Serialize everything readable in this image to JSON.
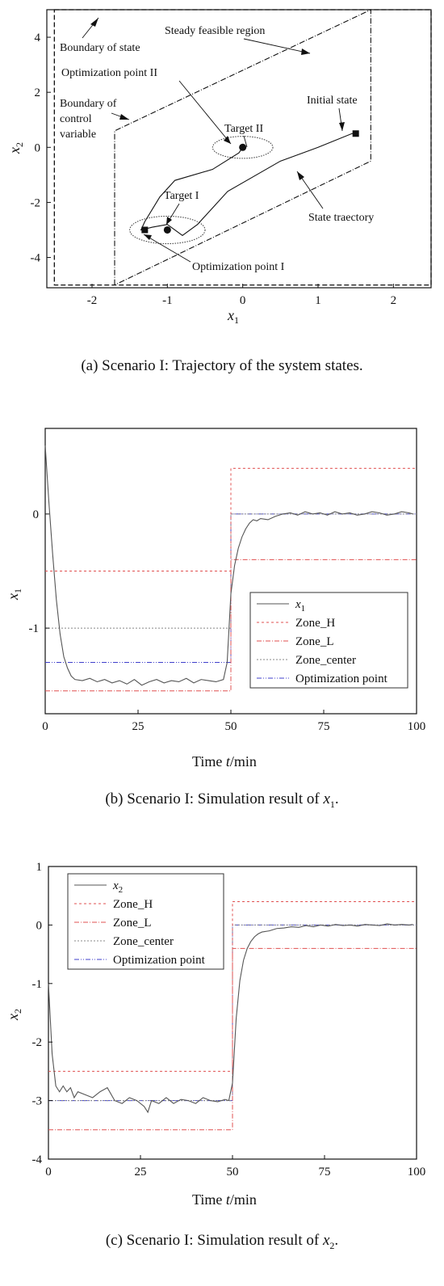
{
  "chart_data": [
    {
      "type": "line",
      "panel": "a",
      "caption": "(a) Scenario I: Trajectory of the system states.",
      "xlabel": "x1",
      "ylabel": "x2",
      "xlim": [
        -2.6,
        2.5
      ],
      "ylim": [
        -5.1,
        5.0
      ],
      "xticks": [
        -2,
        -1,
        0,
        1,
        2
      ],
      "yticks": [
        -4,
        -2,
        0,
        2,
        4
      ],
      "grid": false,
      "state_boundary": {
        "x": [
          -2.5,
          2.5
        ],
        "y": [
          -5,
          5
        ]
      },
      "control_boundary": [
        [
          -1.7,
          -5
        ],
        [
          -1.7,
          0.6
        ],
        [
          1.7,
          5
        ],
        [
          1.7,
          -0.5
        ],
        [
          -1.7,
          -5
        ]
      ],
      "trajectory": [
        [
          1.5,
          0.5
        ],
        [
          1.45,
          0.5
        ],
        [
          1.0,
          0.0
        ],
        [
          0.5,
          -0.5
        ],
        [
          -0.2,
          -1.6
        ],
        [
          -0.6,
          -2.8
        ],
        [
          -0.8,
          -3.2
        ],
        [
          -1.0,
          -2.8
        ],
        [
          -1.2,
          -2.9
        ],
        [
          -1.35,
          -3.0
        ],
        [
          -1.3,
          -2.7
        ],
        [
          -1.1,
          -1.8
        ],
        [
          -0.9,
          -1.2
        ],
        [
          -0.4,
          -0.8
        ],
        [
          -0.05,
          -0.2
        ],
        [
          0.0,
          0.0
        ]
      ],
      "initial_state": [
        1.5,
        0.5
      ],
      "targets": [
        {
          "name": "Target I",
          "center": [
            -1.0,
            -3.0
          ],
          "rx": 0.5,
          "ry": 0.5
        },
        {
          "name": "Target II",
          "center": [
            0.0,
            0.0
          ],
          "rx": 0.4,
          "ry": 0.4
        }
      ],
      "optimization_points": [
        {
          "name": "Optimization point I",
          "point": [
            -1.3,
            -3.0
          ]
        },
        {
          "name": "Optimization point II",
          "point": [
            0.0,
            0.0
          ]
        }
      ],
      "annotations": {
        "boundary_of_state": "Boundary of state",
        "steady_feasible_region": "Steady feasible region",
        "optimization_point_ii": "Optimization point II",
        "boundary_of_control_1": "Boundary of",
        "boundary_of_control_2": "control",
        "boundary_of_control_3": "variable",
        "initial_state": "Initial state",
        "target_ii": "Target II",
        "target_i": "Target I",
        "state_trajectory": "State traectory",
        "optimization_point_i": "Optimization point I"
      }
    },
    {
      "type": "line",
      "panel": "b",
      "caption": "(b) Scenario I: Simulation result of x1.",
      "xlabel": "Time t/min",
      "ylabel": "x1",
      "xlim": [
        0,
        100
      ],
      "ylim": [
        -1.75,
        0.75
      ],
      "xticks": [
        0,
        25,
        50,
        75,
        100
      ],
      "yticks": [
        -1,
        0
      ],
      "grid": false,
      "legend": "center-right",
      "series": [
        {
          "name": "x1",
          "color": "#555555",
          "x": [
            0,
            1,
            2,
            3,
            4,
            5,
            6,
            7,
            8,
            10,
            12,
            14,
            16,
            18,
            20,
            22,
            24,
            26,
            28,
            30,
            32,
            34,
            36,
            38,
            40,
            42,
            44,
            46,
            48,
            49,
            50,
            51,
            52,
            53,
            54,
            55,
            56,
            57,
            58,
            60,
            62,
            64,
            66,
            68,
            70,
            72,
            74,
            76,
            78,
            80,
            82,
            84,
            86,
            88,
            90,
            92,
            94,
            96,
            98,
            99
          ],
          "y": [
            0.6,
            0.1,
            -0.35,
            -0.75,
            -1.05,
            -1.25,
            -1.35,
            -1.42,
            -1.45,
            -1.46,
            -1.44,
            -1.47,
            -1.45,
            -1.48,
            -1.46,
            -1.49,
            -1.45,
            -1.5,
            -1.47,
            -1.45,
            -1.48,
            -1.46,
            -1.47,
            -1.44,
            -1.48,
            -1.45,
            -1.46,
            -1.47,
            -1.45,
            -1.3,
            -0.7,
            -0.45,
            -0.3,
            -0.2,
            -0.13,
            -0.08,
            -0.05,
            -0.06,
            -0.04,
            -0.05,
            -0.02,
            0.0,
            0.01,
            -0.01,
            0.02,
            0.0,
            0.01,
            -0.01,
            0.02,
            0.0,
            0.01,
            -0.01,
            0.0,
            0.02,
            0.01,
            -0.01,
            0.0,
            0.02,
            0.01,
            0.0
          ]
        },
        {
          "name": "Zone_H",
          "color": "#e05050",
          "x": [
            0,
            50,
            50,
            100
          ],
          "y": [
            -0.5,
            -0.5,
            0.4,
            0.4
          ]
        },
        {
          "name": "Zone_L",
          "color": "#e05050",
          "x": [
            0,
            50,
            50,
            100
          ],
          "y": [
            -1.55,
            -1.55,
            -0.4,
            -0.4
          ]
        },
        {
          "name": "Zone_center",
          "color": "#888888",
          "x": [
            0,
            50,
            50,
            100
          ],
          "y": [
            -1.0,
            -1.0,
            0.0,
            0.0
          ]
        },
        {
          "name": "Optimization point",
          "color": "#4040cc",
          "x": [
            0,
            50,
            50,
            100
          ],
          "y": [
            -1.3,
            -1.3,
            0.0,
            0.0
          ]
        }
      ]
    },
    {
      "type": "line",
      "panel": "c",
      "caption": "(c) Scenario I: Simulation result of x2.",
      "xlabel": "Time t/min",
      "ylabel": "x2",
      "xlim": [
        0,
        100
      ],
      "ylim": [
        -4,
        1
      ],
      "xticks": [
        0,
        25,
        50,
        75,
        100
      ],
      "yticks": [
        -4,
        -3,
        -2,
        -1,
        0,
        1
      ],
      "grid": false,
      "legend": "top-left",
      "series": [
        {
          "name": "x2",
          "color": "#555555",
          "x": [
            0,
            1,
            2,
            3,
            4,
            5,
            6,
            7,
            8,
            10,
            12,
            14,
            16,
            18,
            20,
            22,
            24,
            26,
            27,
            28,
            30,
            32,
            34,
            36,
            38,
            40,
            42,
            44,
            46,
            48,
            49,
            50,
            51,
            52,
            53,
            54,
            55,
            56,
            57,
            58,
            60,
            62,
            64,
            66,
            68,
            70,
            72,
            74,
            76,
            78,
            80,
            82,
            84,
            86,
            88,
            90,
            92,
            94,
            96,
            98,
            99
          ],
          "y": [
            -1.0,
            -2.2,
            -2.75,
            -2.85,
            -2.75,
            -2.85,
            -2.78,
            -2.95,
            -2.85,
            -2.9,
            -2.95,
            -2.85,
            -2.78,
            -3.0,
            -3.05,
            -2.95,
            -3.0,
            -3.1,
            -3.2,
            -3.0,
            -3.05,
            -2.95,
            -3.05,
            -2.98,
            -3.0,
            -3.05,
            -2.95,
            -3.0,
            -3.02,
            -2.98,
            -3.0,
            -2.7,
            -1.6,
            -0.95,
            -0.6,
            -0.4,
            -0.28,
            -0.2,
            -0.15,
            -0.12,
            -0.1,
            -0.06,
            -0.05,
            -0.03,
            -0.04,
            -0.01,
            -0.03,
            0.0,
            -0.02,
            0.01,
            -0.01,
            0.0,
            -0.02,
            0.01,
            0.0,
            -0.01,
            0.02,
            0.0,
            0.01,
            0.0,
            0.01
          ]
        },
        {
          "name": "Zone_H",
          "color": "#e05050",
          "x": [
            0,
            50,
            50,
            100
          ],
          "y": [
            -2.5,
            -2.5,
            0.4,
            0.4
          ]
        },
        {
          "name": "Zone_L",
          "color": "#e05050",
          "x": [
            0,
            50,
            50,
            100
          ],
          "y": [
            -3.5,
            -3.5,
            -0.4,
            -0.4
          ]
        },
        {
          "name": "Zone_center",
          "color": "#888888",
          "x": [
            0,
            50,
            50,
            100
          ],
          "y": [
            -3.0,
            -3.0,
            0.0,
            0.0
          ]
        },
        {
          "name": "Optimization point",
          "color": "#4040cc",
          "x": [
            0,
            50,
            50,
            100
          ],
          "y": [
            -3.0,
            -3.0,
            0.0,
            0.0
          ]
        }
      ]
    }
  ]
}
